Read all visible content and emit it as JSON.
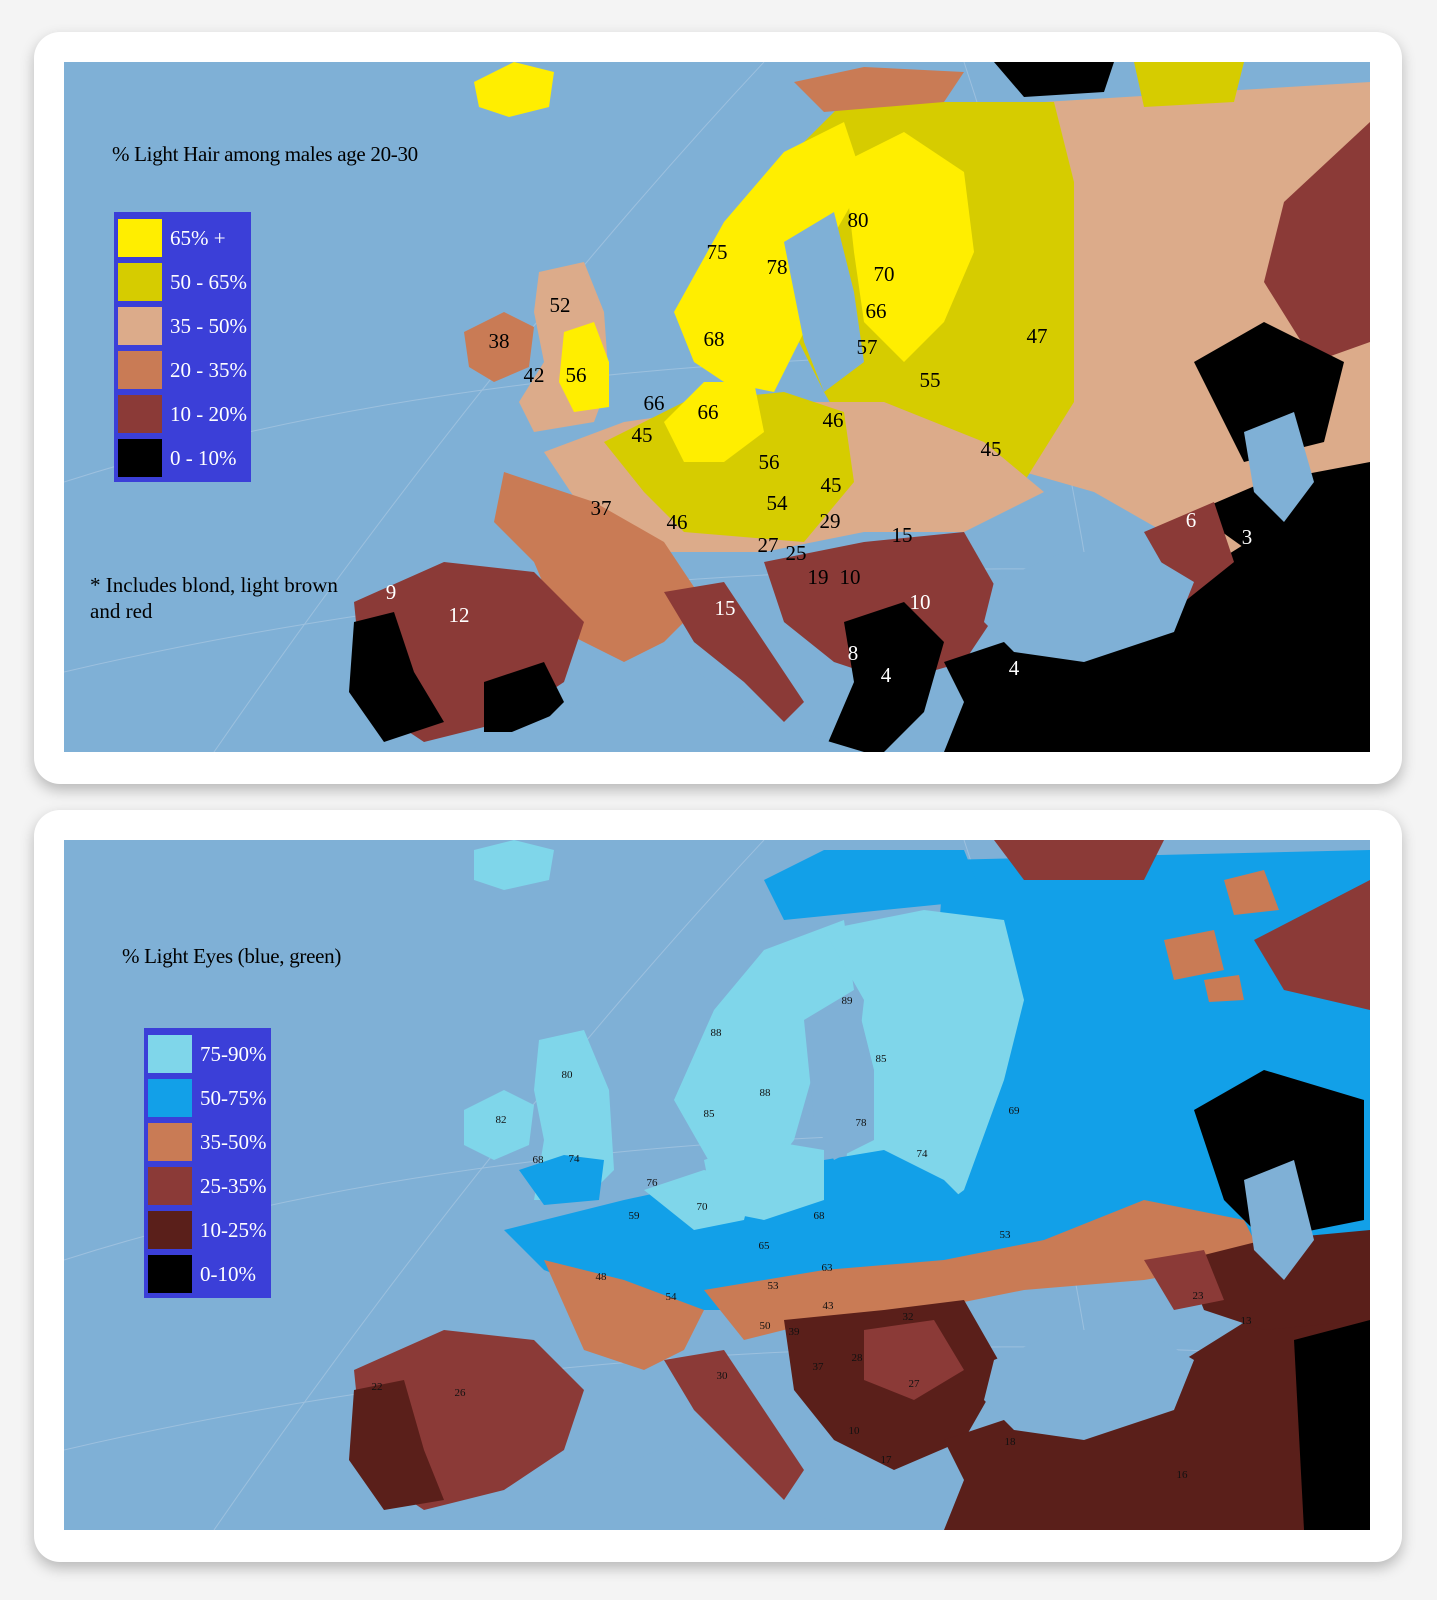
{
  "hair_map": {
    "title": "% Light Hair among males age 20-30",
    "legend": [
      {
        "label": "65% +",
        "color": "#ffee00"
      },
      {
        "label": "50 - 65%",
        "color": "#d6cc00"
      },
      {
        "label": "35 - 50%",
        "color": "#dcab8a"
      },
      {
        "label": "20 - 35%",
        "color": "#c97b55"
      },
      {
        "label": "10 - 20%",
        "color": "#8b3a37"
      },
      {
        "label": "0 - 10%",
        "color": "#000000"
      }
    ],
    "note": "* Includes blond, light brown and red",
    "note_line1": "* Includes blond, light brown",
    "note_line2": "and red",
    "labels": [
      "80",
      "75",
      "78",
      "70",
      "66",
      "52",
      "68",
      "57",
      "47",
      "38",
      "42",
      "56",
      "55",
      "66",
      "66",
      "45",
      "46",
      "56",
      "45",
      "45",
      "54",
      "37",
      "46",
      "29",
      "15",
      "27",
      "25",
      "19",
      "10",
      "6",
      "3",
      "9",
      "12",
      "15",
      "10",
      "8",
      "4",
      "4"
    ]
  },
  "eye_map": {
    "title": "% Light Eyes (blue, green)",
    "legend": [
      {
        "label": "75-90%",
        "color": "#7fd6ea"
      },
      {
        "label": "50-75%",
        "color": "#12a0e8"
      },
      {
        "label": "35-50%",
        "color": "#c97b55"
      },
      {
        "label": "25-35%",
        "color": "#8b3a37"
      },
      {
        "label": "10-25%",
        "color": "#5a1f1a"
      },
      {
        "label": "0-10%",
        "color": "#000000"
      }
    ],
    "labels": [
      "89",
      "88",
      "85",
      "88",
      "80",
      "85",
      "82",
      "78",
      "74",
      "69",
      "68",
      "74",
      "76",
      "70",
      "59",
      "68",
      "65",
      "53",
      "48",
      "54",
      "63",
      "53",
      "43",
      "50",
      "39",
      "32",
      "23",
      "37",
      "28",
      "27",
      "30",
      "26",
      "22",
      "10",
      "17",
      "18",
      "16",
      "13"
    ]
  }
}
